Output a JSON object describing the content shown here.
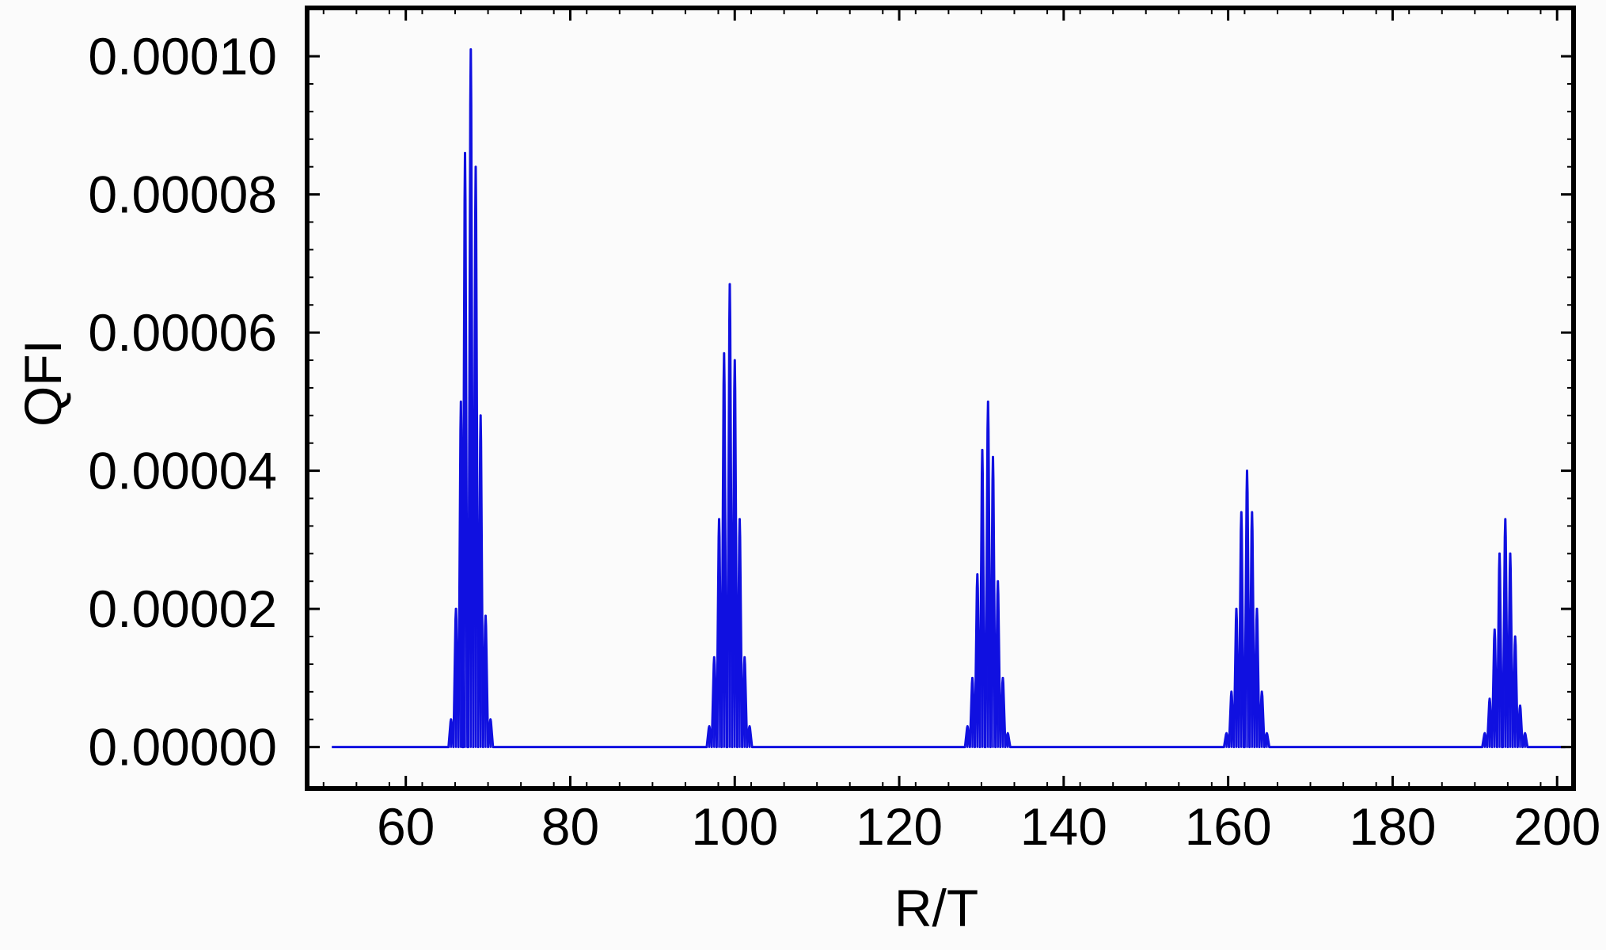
{
  "chart_data": {
    "type": "line",
    "xlabel": "R/T",
    "ylabel": "QFI",
    "xlim": [
      48,
      202
    ],
    "ylim": [
      -6e-06,
      0.000107
    ],
    "x_ticks": [
      60,
      80,
      100,
      120,
      140,
      160,
      180,
      200
    ],
    "x_tick_labels": [
      "60",
      "80",
      "100",
      "120",
      "140",
      "160",
      "180",
      "200"
    ],
    "y_ticks": [
      0,
      2e-05,
      4e-05,
      6e-05,
      8e-05,
      0.0001
    ],
    "y_tick_labels": [
      "0.00000",
      "0.00002",
      "0.00004",
      "0.00006",
      "0.00008",
      "0.00010"
    ],
    "grid": false,
    "legend": "none",
    "colors": {
      "series": "#1010e0",
      "frame": "#000000",
      "background": "#fbfbfb"
    },
    "x_range_plotted": [
      51,
      201
    ],
    "peak_clusters": [
      {
        "center": 67.9,
        "subpeaks": [
          {
            "x": 65.5,
            "y": 4e-06
          },
          {
            "x": 66.1,
            "y": 2e-05
          },
          {
            "x": 66.7,
            "y": 5e-05
          },
          {
            "x": 67.2,
            "y": 8.6e-05
          },
          {
            "x": 67.9,
            "y": 0.000101
          },
          {
            "x": 68.5,
            "y": 8.4e-05
          },
          {
            "x": 69.1,
            "y": 4.8e-05
          },
          {
            "x": 69.7,
            "y": 1.9e-05
          },
          {
            "x": 70.3,
            "y": 4e-06
          }
        ]
      },
      {
        "center": 99.4,
        "subpeaks": [
          {
            "x": 96.9,
            "y": 3e-06
          },
          {
            "x": 97.5,
            "y": 1.3e-05
          },
          {
            "x": 98.1,
            "y": 3.3e-05
          },
          {
            "x": 98.7,
            "y": 5.7e-05
          },
          {
            "x": 99.4,
            "y": 6.7e-05
          },
          {
            "x": 100.0,
            "y": 5.6e-05
          },
          {
            "x": 100.6,
            "y": 3.3e-05
          },
          {
            "x": 101.2,
            "y": 1.3e-05
          },
          {
            "x": 101.8,
            "y": 3e-06
          }
        ]
      },
      {
        "center": 130.8,
        "subpeaks": [
          {
            "x": 128.3,
            "y": 3e-06
          },
          {
            "x": 128.9,
            "y": 1e-05
          },
          {
            "x": 129.5,
            "y": 2.5e-05
          },
          {
            "x": 130.1,
            "y": 4.3e-05
          },
          {
            "x": 130.8,
            "y": 5e-05
          },
          {
            "x": 131.4,
            "y": 4.2e-05
          },
          {
            "x": 132.0,
            "y": 2.4e-05
          },
          {
            "x": 132.6,
            "y": 1e-05
          },
          {
            "x": 133.2,
            "y": 2e-06
          }
        ]
      },
      {
        "center": 162.3,
        "subpeaks": [
          {
            "x": 159.8,
            "y": 2e-06
          },
          {
            "x": 160.4,
            "y": 8e-06
          },
          {
            "x": 161.0,
            "y": 2e-05
          },
          {
            "x": 161.6,
            "y": 3.4e-05
          },
          {
            "x": 162.3,
            "y": 4e-05
          },
          {
            "x": 162.9,
            "y": 3.4e-05
          },
          {
            "x": 163.5,
            "y": 2e-05
          },
          {
            "x": 164.1,
            "y": 8e-06
          },
          {
            "x": 164.7,
            "y": 2e-06
          }
        ]
      },
      {
        "center": 193.7,
        "subpeaks": [
          {
            "x": 191.2,
            "y": 2e-06
          },
          {
            "x": 191.8,
            "y": 7e-06
          },
          {
            "x": 192.4,
            "y": 1.7e-05
          },
          {
            "x": 193.0,
            "y": 2.8e-05
          },
          {
            "x": 193.7,
            "y": 3.3e-05
          },
          {
            "x": 194.3,
            "y": 2.8e-05
          },
          {
            "x": 194.9,
            "y": 1.6e-05
          },
          {
            "x": 195.5,
            "y": 6e-06
          },
          {
            "x": 196.1,
            "y": 2e-06
          }
        ]
      }
    ]
  }
}
